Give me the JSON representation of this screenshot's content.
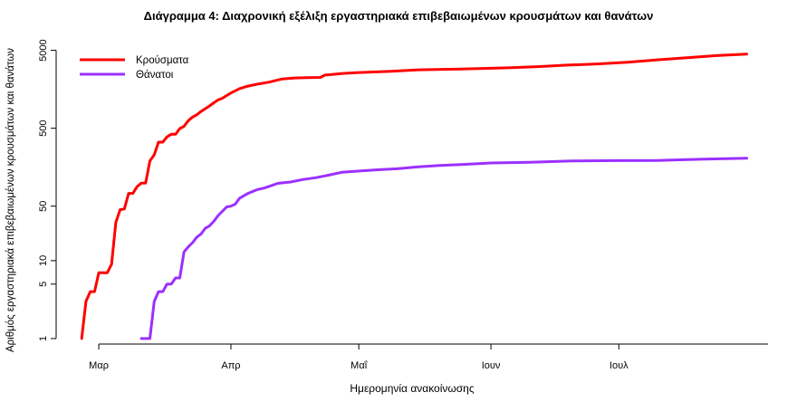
{
  "chart_data": {
    "type": "line",
    "title": "Διάγραμμα 4: Διαχρονική εξέλιξη εργαστηριακά επιβεβαιωμένων κρουσμάτων και θανάτων",
    "xlabel": "Ημερομηνία ανακοίνωσης",
    "ylabel": "Αριθμός εργαστηριακά επιβεβαιωμένων κρουσμάτων και θανάτων",
    "y_scale": "log",
    "ylim": [
      0.85,
      5500
    ],
    "xlim": [
      "2020-02-20",
      "2020-08-05"
    ],
    "y_ticks": [
      1,
      5,
      10,
      50,
      500,
      5000
    ],
    "y_tick_labels": [
      "1",
      "5",
      "10",
      "50",
      "500",
      "5000"
    ],
    "x_ticks": [
      "2020-03-01",
      "2020-04-01",
      "2020-05-01",
      "2020-06-01",
      "2020-07-01"
    ],
    "x_tick_labels": [
      "Μαρ",
      "Απρ",
      "Μαΐ",
      "Ιουν",
      "Ιουλ"
    ],
    "grid": false,
    "legend_position": "top-left",
    "series": [
      {
        "name": "Κρούσματα",
        "color": "#ff0000",
        "points": [
          [
            "2020-02-26",
            1
          ],
          [
            "2020-02-27",
            3
          ],
          [
            "2020-02-28",
            4
          ],
          [
            "2020-02-29",
            4
          ],
          [
            "2020-03-01",
            7
          ],
          [
            "2020-03-02",
            7
          ],
          [
            "2020-03-03",
            7
          ],
          [
            "2020-03-04",
            9
          ],
          [
            "2020-03-05",
            31
          ],
          [
            "2020-03-06",
            45
          ],
          [
            "2020-03-07",
            46
          ],
          [
            "2020-03-08",
            73
          ],
          [
            "2020-03-09",
            73
          ],
          [
            "2020-03-10",
            89
          ],
          [
            "2020-03-11",
            99
          ],
          [
            "2020-03-12",
            99
          ],
          [
            "2020-03-13",
            190
          ],
          [
            "2020-03-14",
            228
          ],
          [
            "2020-03-15",
            331
          ],
          [
            "2020-03-16",
            331
          ],
          [
            "2020-03-17",
            387
          ],
          [
            "2020-03-18",
            418
          ],
          [
            "2020-03-19",
            418
          ],
          [
            "2020-03-20",
            495
          ],
          [
            "2020-03-21",
            530
          ],
          [
            "2020-03-22",
            624
          ],
          [
            "2020-03-23",
            695
          ],
          [
            "2020-03-24",
            743
          ],
          [
            "2020-03-25",
            821
          ],
          [
            "2020-03-26",
            892
          ],
          [
            "2020-03-27",
            966
          ],
          [
            "2020-03-28",
            1061
          ],
          [
            "2020-03-29",
            1156
          ],
          [
            "2020-03-30",
            1212
          ],
          [
            "2020-03-31",
            1314
          ],
          [
            "2020-04-01",
            1415
          ],
          [
            "2020-04-03",
            1613
          ],
          [
            "2020-04-05",
            1735
          ],
          [
            "2020-04-07",
            1832
          ],
          [
            "2020-04-10",
            1955
          ],
          [
            "2020-04-13",
            2145
          ],
          [
            "2020-04-16",
            2207
          ],
          [
            "2020-04-19",
            2235
          ],
          [
            "2020-04-22",
            2245
          ],
          [
            "2020-04-23",
            2401
          ],
          [
            "2020-04-27",
            2517
          ],
          [
            "2020-05-01",
            2591
          ],
          [
            "2020-05-08",
            2678
          ],
          [
            "2020-05-15",
            2810
          ],
          [
            "2020-05-22",
            2853
          ],
          [
            "2020-05-29",
            2906
          ],
          [
            "2020-06-05",
            2980
          ],
          [
            "2020-06-12",
            3088
          ],
          [
            "2020-06-19",
            3227
          ],
          [
            "2020-06-26",
            3343
          ],
          [
            "2020-07-03",
            3511
          ],
          [
            "2020-07-10",
            3772
          ],
          [
            "2020-07-17",
            4007
          ],
          [
            "2020-07-24",
            4279
          ],
          [
            "2020-07-31",
            4477
          ]
        ]
      },
      {
        "name": "Θάνατοι",
        "color": "#9b30ff",
        "points": [
          [
            "2020-03-11",
            1
          ],
          [
            "2020-03-13",
            1
          ],
          [
            "2020-03-14",
            3
          ],
          [
            "2020-03-15",
            4
          ],
          [
            "2020-03-16",
            4
          ],
          [
            "2020-03-17",
            5
          ],
          [
            "2020-03-18",
            5
          ],
          [
            "2020-03-19",
            6
          ],
          [
            "2020-03-20",
            6
          ],
          [
            "2020-03-21",
            13
          ],
          [
            "2020-03-22",
            15
          ],
          [
            "2020-03-23",
            17
          ],
          [
            "2020-03-24",
            20
          ],
          [
            "2020-03-25",
            22
          ],
          [
            "2020-03-26",
            26
          ],
          [
            "2020-03-27",
            28
          ],
          [
            "2020-03-28",
            32
          ],
          [
            "2020-03-29",
            38
          ],
          [
            "2020-03-30",
            43
          ],
          [
            "2020-03-31",
            49
          ],
          [
            "2020-04-01",
            50
          ],
          [
            "2020-04-02",
            53
          ],
          [
            "2020-04-03",
            63
          ],
          [
            "2020-04-05",
            73
          ],
          [
            "2020-04-07",
            81
          ],
          [
            "2020-04-09",
            86
          ],
          [
            "2020-04-12",
            98
          ],
          [
            "2020-04-15",
            102
          ],
          [
            "2020-04-18",
            110
          ],
          [
            "2020-04-21",
            116
          ],
          [
            "2020-04-24",
            125
          ],
          [
            "2020-04-27",
            136
          ],
          [
            "2020-04-30",
            140
          ],
          [
            "2020-05-05",
            146
          ],
          [
            "2020-05-10",
            151
          ],
          [
            "2020-05-15",
            160
          ],
          [
            "2020-05-20",
            166
          ],
          [
            "2020-05-25",
            171
          ],
          [
            "2020-06-01",
            179
          ],
          [
            "2020-06-10",
            183
          ],
          [
            "2020-06-20",
            190
          ],
          [
            "2020-06-30",
            192
          ],
          [
            "2020-07-10",
            193
          ],
          [
            "2020-07-20",
            200
          ],
          [
            "2020-07-31",
            206
          ]
        ]
      }
    ]
  }
}
